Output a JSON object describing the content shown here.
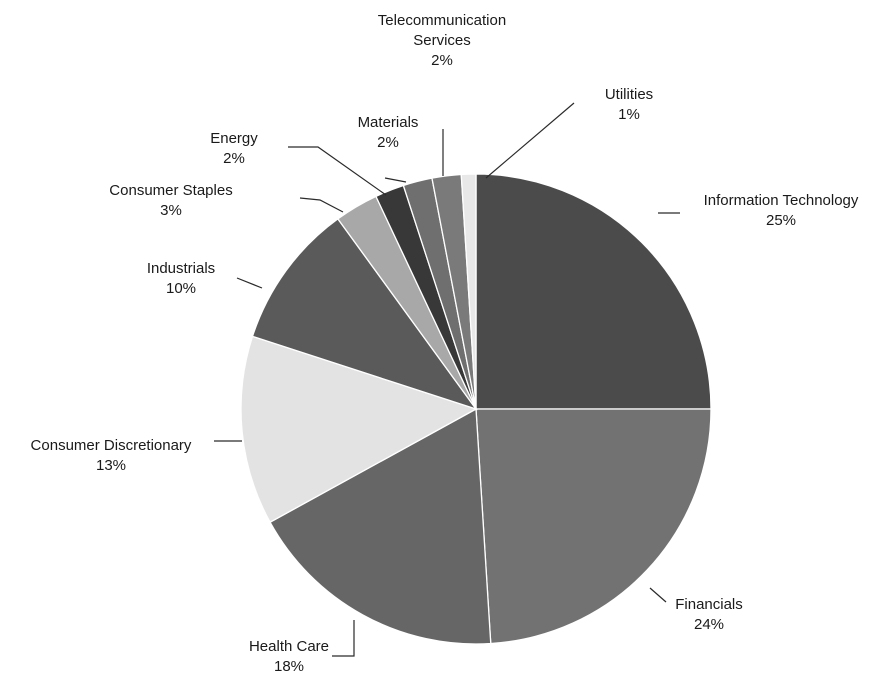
{
  "chart_data": {
    "type": "pie",
    "slices": [
      {
        "name": "Information Technology",
        "value_label": "25%",
        "value": 25,
        "color": "#4b4b4b"
      },
      {
        "name": "Financials",
        "value_label": "24%",
        "value": 24,
        "color": "#727272"
      },
      {
        "name": "Health Care",
        "value_label": "18%",
        "value": 18,
        "color": "#666666"
      },
      {
        "name": "Consumer Discretionary",
        "value_label": "13%",
        "value": 13,
        "color": "#e3e3e3"
      },
      {
        "name": "Industrials",
        "value_label": "10%",
        "value": 10,
        "color": "#5a5a5a"
      },
      {
        "name": "Consumer Staples",
        "value_label": "3%",
        "value": 3,
        "color": "#a8a8a8"
      },
      {
        "name": "Energy",
        "value_label": "2%",
        "value": 2,
        "color": "#383838"
      },
      {
        "name": "Materials",
        "value_label": "2%",
        "value": 2,
        "color": "#6f6f6f"
      },
      {
        "name": "Telecommunication Services",
        "value_label": "2%",
        "value": 2,
        "color": "#7a7a7a"
      },
      {
        "name": "Utilities",
        "value_label": "1%",
        "value": 1,
        "color": "#e8e8e8"
      }
    ],
    "legend": "none"
  }
}
